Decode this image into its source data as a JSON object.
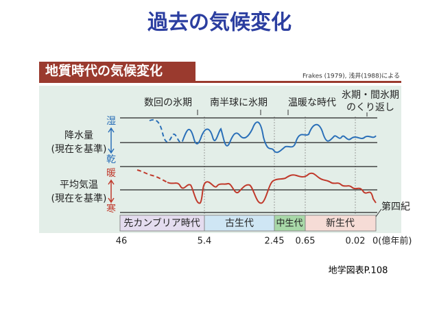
{
  "title": "過去の気候変化",
  "figure": {
    "header": "地質時代の気候変化",
    "source": "Frakes (1979), 浅井(1988)による",
    "annotations": [
      [
        "数回の氷期"
      ],
      [
        "南半球に氷期"
      ],
      [
        "温暖な時代"
      ],
      [
        "氷期・間氷期",
        "のくり返し"
      ]
    ],
    "rows": [
      {
        "label": "降水量",
        "sub": "(現在を基準)",
        "up": "湿",
        "down": "乾"
      },
      {
        "label": "平均気温",
        "sub": "(現在を基準)",
        "up": "暖",
        "down": "寒"
      }
    ],
    "eras": [
      "先カンブリア時代",
      "古生代",
      "中生代",
      "新生代"
    ],
    "quaternary": "第四紀",
    "time_labels": [
      "46",
      "5.4",
      "2.45",
      "0.65",
      "0.02",
      "0(億年前)"
    ]
  },
  "footer": "地学図表P.108"
}
